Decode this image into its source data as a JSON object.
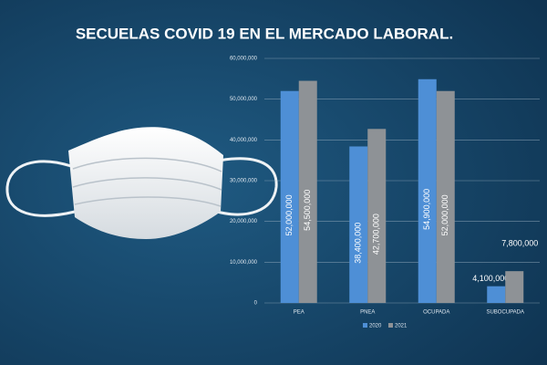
{
  "chart_data": {
    "type": "bar",
    "title": "SECUELAS COVID 19 EN EL MERCADO LABORAL.",
    "categories": [
      "PEA",
      "PNEA",
      "OCUPADA",
      "SUBOCUPADA"
    ],
    "series": [
      {
        "name": "2020",
        "color": "#4e8fd6",
        "values": [
          52000000,
          38400000,
          54900000,
          4100000
        ],
        "value_labels": [
          "52,000,000",
          "38,400,000",
          "54,900,000",
          "4,100,000"
        ]
      },
      {
        "name": "2021",
        "color": "#8e9296",
        "values": [
          54500000,
          42700000,
          52000000,
          7800000
        ],
        "value_labels": [
          "54,500,000",
          "42,700,000",
          "52,000,000",
          "7,800,000"
        ]
      }
    ],
    "ylim": [
      0,
      60000000
    ],
    "yticks": [
      0,
      {
        "value": 10000000,
        "label": "10,000,000"
      },
      {
        "value": 20000000,
        "label": "20,000,000"
      },
      {
        "value": 30000000,
        "label": "30,000,000"
      },
      {
        "value": 40000000,
        "label": "40,000,000"
      },
      {
        "value": 50000000,
        "label": "50,000,000"
      },
      {
        "value": 60000000,
        "label": "60,000,000"
      }
    ],
    "grid": true
  }
}
